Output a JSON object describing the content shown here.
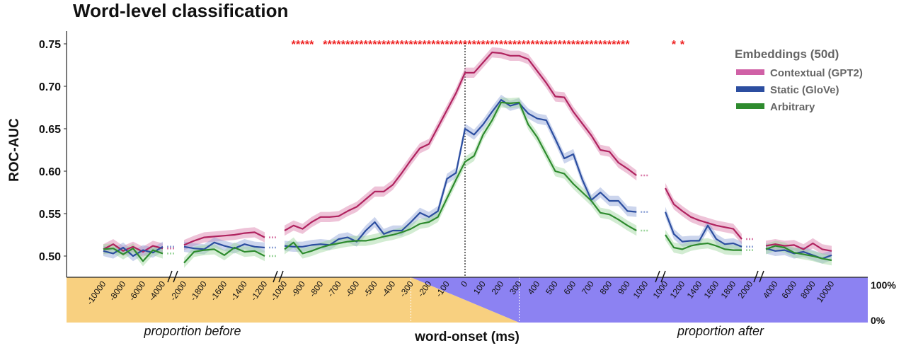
{
  "chart_data": {
    "type": "line",
    "title": "Word-level classification",
    "ylabel": "ROC-AUC",
    "xlabel": "word-onset (ms)",
    "ylim": [
      0.475,
      0.76
    ],
    "yticks": [
      "0.50",
      "0.55",
      "0.60",
      "0.65",
      "0.70",
      "0.75"
    ],
    "ytick_values": [
      0.5,
      0.55,
      0.6,
      0.65,
      0.7,
      0.75
    ],
    "legend": {
      "title": "Embeddings (50d)",
      "placement": "top-right"
    },
    "region_labels": {
      "before": "proportion before",
      "after": "proportion after"
    },
    "proportion_scale": {
      "top": "100%",
      "bottom": "0%"
    },
    "colors": {
      "before": "#f8d080",
      "after": "#8c82f2",
      "significance": "#ee2222"
    },
    "segments": [
      {
        "name": "before-proportion",
        "ticks": [
          "-10000",
          "-8000",
          "-6000",
          "-4000"
        ],
        "x": [
          -10000,
          -9000,
          -8000,
          -7000,
          -6000,
          -5000,
          -4000
        ]
      },
      {
        "name": "before-ms-far",
        "ticks": [
          "-2000",
          "-1800",
          "-1600",
          "-1400",
          "-1200"
        ],
        "x": [
          -2000,
          -1900,
          -1800,
          -1700,
          -1600,
          -1500,
          -1400,
          -1300,
          -1200
        ]
      },
      {
        "name": "main",
        "ticks": [
          "-1000",
          "-900",
          "-800",
          "-700",
          "-600",
          "-500",
          "-400",
          "-300",
          "-200",
          "-100",
          "0",
          "100",
          "200",
          "300",
          "400",
          "500",
          "600",
          "700",
          "800",
          "900",
          "1000"
        ],
        "x": [
          -1000,
          -950,
          -900,
          -850,
          -800,
          -750,
          -700,
          -650,
          -600,
          -550,
          -500,
          -450,
          -400,
          -350,
          -300,
          -250,
          -200,
          -150,
          -100,
          -50,
          0,
          50,
          100,
          150,
          200,
          250,
          300,
          350,
          400,
          450,
          500,
          550,
          600,
          650,
          700,
          750,
          800,
          850,
          900,
          950
        ]
      },
      {
        "name": "after-ms-far",
        "ticks": [
          "1000",
          "1200",
          "1400",
          "1600",
          "1800",
          "2000"
        ],
        "x": [
          1000,
          1100,
          1200,
          1300,
          1400,
          1500,
          1600,
          1700,
          1800,
          1900
        ]
      },
      {
        "name": "after-proportion",
        "ticks": [
          "4000",
          "6000",
          "8000",
          "10000"
        ],
        "x": [
          3000,
          4000,
          5000,
          6000,
          7000,
          8000,
          9000,
          10000
        ]
      }
    ],
    "series": [
      {
        "name": "Contextual (GPT2)",
        "color": "#b0235f",
        "band_color": "#d97aa8",
        "values": [
          [
            0.508,
            0.514,
            0.506,
            0.511,
            0.505,
            0.512,
            0.509
          ],
          [
            0.513,
            0.518,
            0.522,
            0.523,
            0.524,
            0.525,
            0.527,
            0.528,
            0.522
          ],
          [
            0.53,
            0.536,
            0.532,
            0.54,
            0.546,
            0.546,
            0.547,
            0.553,
            0.558,
            0.567,
            0.576,
            0.576,
            0.584,
            0.598,
            0.613,
            0.627,
            0.632,
            0.652,
            0.672,
            0.692,
            0.716,
            0.716,
            0.728,
            0.74,
            0.739,
            0.736,
            0.736,
            0.732,
            0.718,
            0.704,
            0.688,
            0.687,
            0.67,
            0.656,
            0.642,
            0.625,
            0.623,
            0.61,
            0.603,
            0.595
          ],
          [
            0.58,
            0.561,
            0.553,
            0.546,
            0.542,
            0.539,
            0.536,
            0.534,
            0.532,
            0.52
          ],
          [
            0.512,
            0.514,
            0.512,
            0.513,
            0.508,
            0.515,
            0.508,
            0.506
          ]
        ]
      },
      {
        "name": "Static (GloVe)",
        "color": "#2c4ea0",
        "band_color": "#8ea2d6",
        "values": [
          [
            0.506,
            0.503,
            0.51,
            0.5,
            0.507,
            0.504,
            0.511
          ],
          [
            0.511,
            0.509,
            0.508,
            0.516,
            0.512,
            0.509,
            0.514,
            0.511,
            0.51
          ],
          [
            0.512,
            0.511,
            0.511,
            0.513,
            0.514,
            0.513,
            0.52,
            0.522,
            0.517,
            0.53,
            0.54,
            0.526,
            0.53,
            0.53,
            0.54,
            0.551,
            0.546,
            0.553,
            0.591,
            0.598,
            0.65,
            0.643,
            0.655,
            0.67,
            0.684,
            0.677,
            0.68,
            0.668,
            0.662,
            0.66,
            0.638,
            0.615,
            0.62,
            0.59,
            0.566,
            0.575,
            0.565,
            0.565,
            0.553,
            0.552
          ],
          [
            0.552,
            0.526,
            0.517,
            0.518,
            0.518,
            0.536,
            0.52,
            0.514,
            0.515,
            0.511
          ],
          [
            0.509,
            0.506,
            0.507,
            0.503,
            0.505,
            0.501,
            0.497,
            0.501
          ]
        ]
      },
      {
        "name": "Arbitrary",
        "color": "#2e8b2e",
        "band_color": "#9bd59b",
        "values": [
          [
            0.508,
            0.509,
            0.502,
            0.509,
            0.494,
            0.507,
            0.503
          ],
          [
            0.492,
            0.505,
            0.507,
            0.508,
            0.501,
            0.51,
            0.505,
            0.506,
            0.5
          ],
          [
            0.508,
            0.516,
            0.503,
            0.506,
            0.51,
            0.513,
            0.515,
            0.517,
            0.518,
            0.518,
            0.52,
            0.523,
            0.525,
            0.528,
            0.532,
            0.538,
            0.54,
            0.546,
            0.568,
            0.59,
            0.611,
            0.618,
            0.643,
            0.66,
            0.681,
            0.68,
            0.681,
            0.655,
            0.64,
            0.62,
            0.6,
            0.597,
            0.585,
            0.575,
            0.565,
            0.551,
            0.549,
            0.543,
            0.536,
            0.53
          ],
          [
            0.525,
            0.51,
            0.508,
            0.512,
            0.514,
            0.515,
            0.512,
            0.508,
            0.507,
            0.507
          ],
          [
            0.508,
            0.512,
            0.51,
            0.504,
            0.502,
            0.5,
            0.497,
            0.495
          ]
        ]
      }
    ],
    "significance_marker": "*",
    "significance_x": [
      -950,
      -925,
      -900,
      -875,
      -850,
      -775,
      -750,
      -725,
      -700,
      -675,
      -650,
      -625,
      -600,
      -575,
      -550,
      -525,
      -500,
      -475,
      -450,
      -425,
      -400,
      -375,
      -350,
      -325,
      -300,
      -275,
      -250,
      -225,
      -200,
      -175,
      -150,
      -125,
      -100,
      -75,
      -50,
      -25,
      0,
      25,
      50,
      75,
      100,
      125,
      150,
      175,
      200,
      225,
      250,
      275,
      300,
      325,
      350,
      375,
      400,
      425,
      450,
      475,
      500,
      525,
      550,
      575,
      600,
      625,
      650,
      675,
      700,
      725,
      750,
      775,
      800,
      825,
      850,
      875,
      900,
      1100,
      1200
    ]
  }
}
